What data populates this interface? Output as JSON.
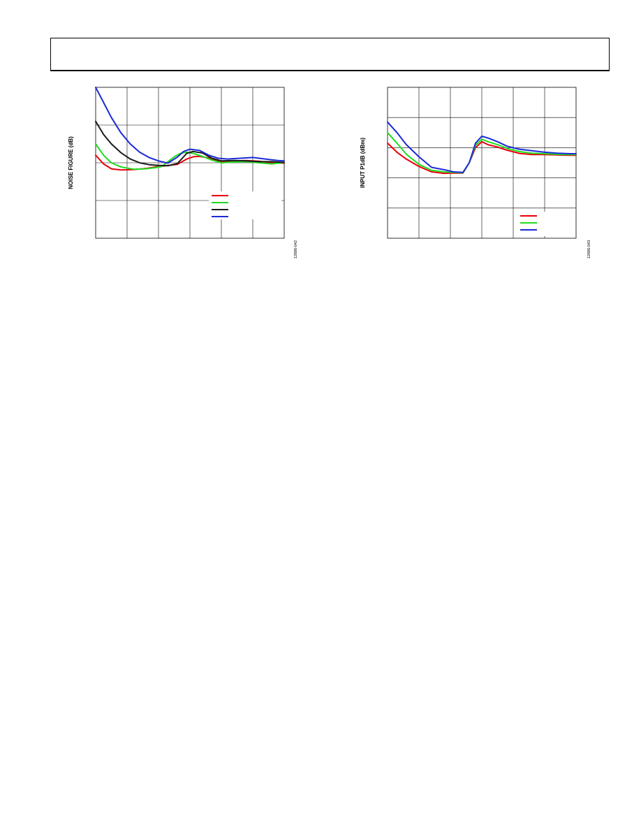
{
  "chart_data": [
    {
      "type": "line",
      "title": "",
      "xlabel": "",
      "ylabel": "NOISE FIGURE (dB)",
      "figure_id": "12686-042",
      "grid": true,
      "x_divisions": 6,
      "y_divisions": 4,
      "xlim": [
        0,
        6
      ],
      "ylim": [
        0,
        4
      ],
      "legend": {
        "position": "lower-right",
        "entries": [
          "",
          "",
          "",
          ""
        ]
      },
      "series": [
        {
          "color": "#e8000b",
          "x": [
            0,
            0.25,
            0.5,
            0.8,
            1.2,
            1.6,
            2.0,
            2.3,
            2.6,
            2.9,
            3.1,
            3.3,
            3.6,
            4.0,
            4.4,
            4.8,
            5.2,
            5.6,
            6.0
          ],
          "y": [
            2.2,
            1.97,
            1.84,
            1.81,
            1.82,
            1.85,
            1.9,
            1.93,
            1.96,
            2.1,
            2.16,
            2.17,
            2.13,
            2.03,
            2.05,
            2.06,
            2.04,
            2.0,
            1.99
          ]
        },
        {
          "color": "#1fdc1f",
          "x": [
            0,
            0.25,
            0.5,
            0.8,
            1.2,
            1.6,
            1.9,
            2.1,
            2.3,
            2.5,
            2.7,
            2.9,
            3.1,
            3.4,
            3.7,
            4.0,
            4.4,
            4.8,
            5.2,
            5.6,
            6.0
          ],
          "y": [
            2.5,
            2.2,
            2.0,
            1.89,
            1.83,
            1.84,
            1.87,
            1.9,
            2.03,
            2.16,
            2.25,
            2.28,
            2.25,
            2.17,
            2.07,
            2.0,
            2.02,
            2.03,
            2.0,
            1.97,
            2.01
          ]
        },
        {
          "color": "#1a1a1a",
          "x": [
            0,
            0.25,
            0.5,
            0.8,
            1.1,
            1.4,
            1.7,
            2.0,
            2.3,
            2.6,
            2.9,
            3.1,
            3.4,
            3.7,
            4.0,
            4.4,
            4.8,
            5.2,
            5.6,
            6.0
          ],
          "y": [
            3.1,
            2.75,
            2.5,
            2.27,
            2.1,
            2.0,
            1.95,
            1.93,
            1.92,
            1.98,
            2.25,
            2.3,
            2.26,
            2.12,
            2.05,
            2.06,
            2.05,
            2.03,
            2.03,
            2.01
          ]
        },
        {
          "color": "#1a2ad8",
          "x": [
            0,
            0.25,
            0.5,
            0.8,
            1.1,
            1.4,
            1.7,
            2.0,
            2.3,
            2.6,
            2.8,
            3.0,
            3.3,
            3.6,
            3.9,
            4.2,
            4.6,
            5.0,
            5.4,
            5.8,
            6.0
          ],
          "y": [
            4.0,
            3.6,
            3.2,
            2.8,
            2.5,
            2.28,
            2.14,
            2.05,
            1.99,
            2.15,
            2.3,
            2.36,
            2.33,
            2.2,
            2.12,
            2.1,
            2.12,
            2.14,
            2.1,
            2.06,
            2.05
          ]
        }
      ]
    },
    {
      "type": "line",
      "title": "",
      "xlabel": "",
      "ylabel": "INPUT P1dB (dBm)",
      "figure_id": "12686-043",
      "grid": true,
      "x_divisions": 6,
      "y_divisions": 5,
      "xlim": [
        0,
        6
      ],
      "ylim": [
        0,
        5
      ],
      "legend": {
        "position": "lower-right",
        "entries": [
          "",
          "",
          ""
        ]
      },
      "series": [
        {
          "color": "#e8000b",
          "x": [
            0,
            0.3,
            0.6,
            1.0,
            1.4,
            1.8,
            2.1,
            2.4,
            2.6,
            2.8,
            3.0,
            3.2,
            3.5,
            3.8,
            4.2,
            4.6,
            5.0,
            5.4,
            5.8,
            6.0
          ],
          "y": [
            3.15,
            2.85,
            2.62,
            2.38,
            2.2,
            2.15,
            2.16,
            2.16,
            2.5,
            3.0,
            3.2,
            3.1,
            3.02,
            2.92,
            2.81,
            2.77,
            2.77,
            2.76,
            2.75,
            2.75
          ]
        },
        {
          "color": "#1fdc1f",
          "x": [
            0,
            0.3,
            0.6,
            1.0,
            1.4,
            1.8,
            2.1,
            2.4,
            2.6,
            2.8,
            3.0,
            3.2,
            3.5,
            3.8,
            4.2,
            4.6,
            5.0,
            5.4,
            5.8,
            6.0
          ],
          "y": [
            3.5,
            3.15,
            2.78,
            2.45,
            2.25,
            2.2,
            2.18,
            2.17,
            2.5,
            3.08,
            3.28,
            3.2,
            3.1,
            2.98,
            2.87,
            2.82,
            2.8,
            2.78,
            2.77,
            2.77
          ]
        },
        {
          "color": "#1a2ad8",
          "x": [
            0,
            0.3,
            0.6,
            1.0,
            1.4,
            1.8,
            2.1,
            2.4,
            2.6,
            2.8,
            3.0,
            3.2,
            3.5,
            3.8,
            4.2,
            4.6,
            5.0,
            5.4,
            5.8,
            6.0
          ],
          "y": [
            3.85,
            3.5,
            3.1,
            2.7,
            2.35,
            2.27,
            2.2,
            2.18,
            2.5,
            3.15,
            3.38,
            3.32,
            3.2,
            3.05,
            2.95,
            2.9,
            2.85,
            2.82,
            2.8,
            2.8
          ]
        }
      ]
    }
  ]
}
